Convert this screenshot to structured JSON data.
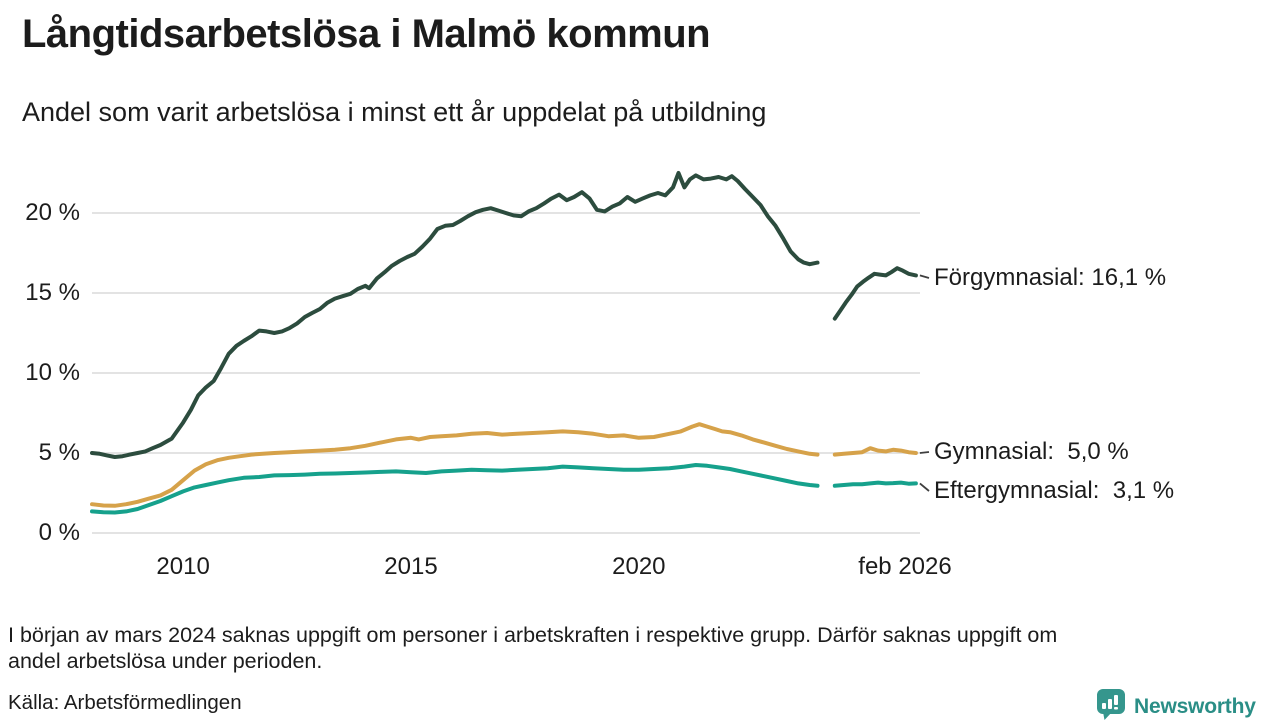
{
  "header": {
    "title": "Långtidsarbetslösa i Malmö kommun",
    "subtitle": "Andel som varit arbetslösa i minst ett år uppdelat på utbildning"
  },
  "footer": {
    "note_line1": "I början av mars 2024 saknas uppgift om personer i arbetskraften i respektive grupp. Därför saknas uppgift om",
    "note_line2": "andel arbetslösa under perioden.",
    "source": "Källa: Arbetsförmedlingen",
    "brand": "Newsworthy",
    "brand_text_color": "#2a8e86",
    "brand_icon_color": "#35968d"
  },
  "chart_data": {
    "type": "line",
    "title": "Långtidsarbetslösa i Malmö kommun",
    "subtitle": "Andel som varit arbetslösa i minst ett år uppdelat på utbildning",
    "xlabel": "",
    "ylabel": "",
    "x_unit": "year",
    "xlim": [
      2008.0,
      2026.17
    ],
    "ylim": [
      0,
      22.6
    ],
    "grid": "horizontal",
    "grid_color": "#e3e3e3",
    "data_gap_years": [
      2023.92,
      2024.3
    ],
    "yticks": [
      {
        "v": 0,
        "label": "0 %"
      },
      {
        "v": 5,
        "label": "5 %"
      },
      {
        "v": 10,
        "label": "10 %"
      },
      {
        "v": 15,
        "label": "15 %"
      },
      {
        "v": 20,
        "label": "20 %"
      }
    ],
    "xticks": [
      {
        "t": 2010,
        "label": "2010"
      },
      {
        "t": 2015,
        "label": "2015"
      },
      {
        "t": 2020,
        "label": "2020"
      },
      {
        "t": 2026.083,
        "label": "feb 2026"
      }
    ],
    "series": [
      {
        "name": "Förgymnasial",
        "end_label": "Förgymnasial: 16,1 %",
        "end_value": 16.1,
        "color": "#2c4c3e",
        "segments": [
          [
            [
              2008.0,
              5.0
            ],
            [
              2008.17,
              4.95
            ],
            [
              2008.33,
              4.85
            ],
            [
              2008.5,
              4.75
            ],
            [
              2008.67,
              4.8
            ],
            [
              2008.83,
              4.9
            ],
            [
              2009.0,
              5.0
            ],
            [
              2009.17,
              5.1
            ],
            [
              2009.33,
              5.3
            ],
            [
              2009.5,
              5.5
            ],
            [
              2009.75,
              5.9
            ],
            [
              2010.0,
              6.9
            ],
            [
              2010.17,
              7.7
            ],
            [
              2010.33,
              8.6
            ],
            [
              2010.5,
              9.1
            ],
            [
              2010.67,
              9.5
            ],
            [
              2010.83,
              10.3
            ],
            [
              2011.0,
              11.2
            ],
            [
              2011.17,
              11.7
            ],
            [
              2011.33,
              12.0
            ],
            [
              2011.5,
              12.3
            ],
            [
              2011.67,
              12.65
            ],
            [
              2011.83,
              12.6
            ],
            [
              2012.0,
              12.5
            ],
            [
              2012.17,
              12.6
            ],
            [
              2012.33,
              12.8
            ],
            [
              2012.5,
              13.1
            ],
            [
              2012.67,
              13.5
            ],
            [
              2012.83,
              13.75
            ],
            [
              2013.0,
              14.0
            ],
            [
              2013.17,
              14.4
            ],
            [
              2013.33,
              14.65
            ],
            [
              2013.5,
              14.8
            ],
            [
              2013.67,
              14.95
            ],
            [
              2013.83,
              15.25
            ],
            [
              2014.0,
              15.45
            ],
            [
              2014.08,
              15.3
            ],
            [
              2014.25,
              15.9
            ],
            [
              2014.42,
              16.3
            ],
            [
              2014.58,
              16.7
            ],
            [
              2014.75,
              17.0
            ],
            [
              2014.92,
              17.25
            ],
            [
              2015.08,
              17.45
            ],
            [
              2015.25,
              17.9
            ],
            [
              2015.42,
              18.4
            ],
            [
              2015.58,
              19.0
            ],
            [
              2015.75,
              19.2
            ],
            [
              2015.92,
              19.25
            ],
            [
              2016.08,
              19.5
            ],
            [
              2016.25,
              19.8
            ],
            [
              2016.42,
              20.05
            ],
            [
              2016.58,
              20.2
            ],
            [
              2016.75,
              20.3
            ],
            [
              2016.92,
              20.15
            ],
            [
              2017.08,
              20.0
            ],
            [
              2017.25,
              19.85
            ],
            [
              2017.42,
              19.8
            ],
            [
              2017.58,
              20.1
            ],
            [
              2017.75,
              20.3
            ],
            [
              2017.92,
              20.6
            ],
            [
              2018.08,
              20.9
            ],
            [
              2018.25,
              21.15
            ],
            [
              2018.42,
              20.8
            ],
            [
              2018.58,
              21.0
            ],
            [
              2018.75,
              21.3
            ],
            [
              2018.92,
              20.9
            ],
            [
              2019.08,
              20.2
            ],
            [
              2019.25,
              20.1
            ],
            [
              2019.42,
              20.4
            ],
            [
              2019.58,
              20.6
            ],
            [
              2019.75,
              21.0
            ],
            [
              2019.92,
              20.7
            ],
            [
              2020.08,
              20.9
            ],
            [
              2020.25,
              21.1
            ],
            [
              2020.42,
              21.25
            ],
            [
              2020.58,
              21.1
            ],
            [
              2020.75,
              21.6
            ],
            [
              2020.87,
              22.5
            ],
            [
              2021.0,
              21.6
            ],
            [
              2021.12,
              22.1
            ],
            [
              2021.25,
              22.35
            ],
            [
              2021.42,
              22.1
            ],
            [
              2021.58,
              22.15
            ],
            [
              2021.75,
              22.25
            ],
            [
              2021.92,
              22.1
            ],
            [
              2022.04,
              22.3
            ],
            [
              2022.17,
              22.0
            ],
            [
              2022.33,
              21.5
            ],
            [
              2022.5,
              21.0
            ],
            [
              2022.67,
              20.5
            ],
            [
              2022.83,
              19.8
            ],
            [
              2023.0,
              19.2
            ],
            [
              2023.17,
              18.4
            ],
            [
              2023.33,
              17.6
            ],
            [
              2023.5,
              17.1
            ],
            [
              2023.62,
              16.9
            ],
            [
              2023.75,
              16.8
            ],
            [
              2023.92,
              16.9
            ]
          ],
          [
            [
              2024.3,
              13.4
            ],
            [
              2024.42,
              13.9
            ],
            [
              2024.54,
              14.4
            ],
            [
              2024.67,
              14.9
            ],
            [
              2024.79,
              15.4
            ],
            [
              2024.92,
              15.7
            ],
            [
              2025.04,
              15.95
            ],
            [
              2025.17,
              16.2
            ],
            [
              2025.29,
              16.15
            ],
            [
              2025.42,
              16.1
            ],
            [
              2025.54,
              16.3
            ],
            [
              2025.67,
              16.55
            ],
            [
              2025.79,
              16.4
            ],
            [
              2025.92,
              16.2
            ],
            [
              2026.08,
              16.1
            ]
          ]
        ]
      },
      {
        "name": "Gymnasial",
        "end_label": "Gymnasial:  5,0 %",
        "end_value": 5.0,
        "color": "#d6a24a",
        "segments": [
          [
            [
              2008.0,
              1.8
            ],
            [
              2008.25,
              1.72
            ],
            [
              2008.5,
              1.7
            ],
            [
              2008.75,
              1.8
            ],
            [
              2009.0,
              1.95
            ],
            [
              2009.25,
              2.15
            ],
            [
              2009.5,
              2.35
            ],
            [
              2009.75,
              2.7
            ],
            [
              2010.0,
              3.3
            ],
            [
              2010.25,
              3.9
            ],
            [
              2010.5,
              4.3
            ],
            [
              2010.75,
              4.55
            ],
            [
              2011.0,
              4.7
            ],
            [
              2011.25,
              4.8
            ],
            [
              2011.5,
              4.9
            ],
            [
              2011.75,
              4.95
            ],
            [
              2012.0,
              5.0
            ],
            [
              2012.33,
              5.05
            ],
            [
              2012.67,
              5.1
            ],
            [
              2013.0,
              5.15
            ],
            [
              2013.33,
              5.2
            ],
            [
              2013.67,
              5.3
            ],
            [
              2014.0,
              5.45
            ],
            [
              2014.33,
              5.65
            ],
            [
              2014.67,
              5.85
            ],
            [
              2015.0,
              5.95
            ],
            [
              2015.17,
              5.85
            ],
            [
              2015.42,
              6.0
            ],
            [
              2015.67,
              6.05
            ],
            [
              2016.0,
              6.1
            ],
            [
              2016.33,
              6.2
            ],
            [
              2016.67,
              6.25
            ],
            [
              2017.0,
              6.15
            ],
            [
              2017.33,
              6.2
            ],
            [
              2017.67,
              6.25
            ],
            [
              2018.0,
              6.3
            ],
            [
              2018.33,
              6.35
            ],
            [
              2018.67,
              6.3
            ],
            [
              2019.0,
              6.2
            ],
            [
              2019.33,
              6.05
            ],
            [
              2019.67,
              6.1
            ],
            [
              2020.0,
              5.95
            ],
            [
              2020.33,
              6.0
            ],
            [
              2020.67,
              6.2
            ],
            [
              2020.92,
              6.35
            ],
            [
              2021.17,
              6.65
            ],
            [
              2021.33,
              6.8
            ],
            [
              2021.5,
              6.65
            ],
            [
              2021.67,
              6.5
            ],
            [
              2021.83,
              6.35
            ],
            [
              2022.0,
              6.3
            ],
            [
              2022.25,
              6.1
            ],
            [
              2022.5,
              5.85
            ],
            [
              2022.75,
              5.65
            ],
            [
              2023.0,
              5.45
            ],
            [
              2023.25,
              5.25
            ],
            [
              2023.5,
              5.1
            ],
            [
              2023.75,
              4.95
            ],
            [
              2023.92,
              4.9
            ]
          ],
          [
            [
              2024.3,
              4.9
            ],
            [
              2024.5,
              4.95
            ],
            [
              2024.7,
              5.0
            ],
            [
              2024.9,
              5.05
            ],
            [
              2025.08,
              5.3
            ],
            [
              2025.25,
              5.15
            ],
            [
              2025.42,
              5.1
            ],
            [
              2025.58,
              5.2
            ],
            [
              2025.75,
              5.15
            ],
            [
              2025.92,
              5.05
            ],
            [
              2026.08,
              5.0
            ]
          ]
        ]
      },
      {
        "name": "Eftergymnasial",
        "end_label": "Eftergymnasial:  3,1 %",
        "end_value": 3.1,
        "color": "#16a18c",
        "segments": [
          [
            [
              2008.0,
              1.35
            ],
            [
              2008.25,
              1.3
            ],
            [
              2008.5,
              1.28
            ],
            [
              2008.75,
              1.35
            ],
            [
              2009.0,
              1.5
            ],
            [
              2009.25,
              1.75
            ],
            [
              2009.5,
              2.0
            ],
            [
              2009.75,
              2.3
            ],
            [
              2010.0,
              2.6
            ],
            [
              2010.25,
              2.85
            ],
            [
              2010.5,
              3.0
            ],
            [
              2010.75,
              3.15
            ],
            [
              2011.0,
              3.3
            ],
            [
              2011.33,
              3.45
            ],
            [
              2011.67,
              3.5
            ],
            [
              2012.0,
              3.6
            ],
            [
              2012.33,
              3.62
            ],
            [
              2012.67,
              3.65
            ],
            [
              2013.0,
              3.7
            ],
            [
              2013.33,
              3.72
            ],
            [
              2013.67,
              3.75
            ],
            [
              2014.0,
              3.78
            ],
            [
              2014.33,
              3.82
            ],
            [
              2014.67,
              3.85
            ],
            [
              2015.0,
              3.8
            ],
            [
              2015.33,
              3.75
            ],
            [
              2015.67,
              3.85
            ],
            [
              2016.0,
              3.9
            ],
            [
              2016.33,
              3.95
            ],
            [
              2016.67,
              3.92
            ],
            [
              2017.0,
              3.9
            ],
            [
              2017.33,
              3.95
            ],
            [
              2017.67,
              4.0
            ],
            [
              2018.0,
              4.05
            ],
            [
              2018.33,
              4.15
            ],
            [
              2018.67,
              4.1
            ],
            [
              2019.0,
              4.05
            ],
            [
              2019.33,
              4.0
            ],
            [
              2019.67,
              3.95
            ],
            [
              2020.0,
              3.95
            ],
            [
              2020.33,
              4.0
            ],
            [
              2020.67,
              4.05
            ],
            [
              2021.0,
              4.15
            ],
            [
              2021.25,
              4.25
            ],
            [
              2021.5,
              4.2
            ],
            [
              2021.75,
              4.1
            ],
            [
              2022.0,
              4.0
            ],
            [
              2022.25,
              3.85
            ],
            [
              2022.5,
              3.7
            ],
            [
              2022.75,
              3.55
            ],
            [
              2023.0,
              3.4
            ],
            [
              2023.25,
              3.25
            ],
            [
              2023.5,
              3.1
            ],
            [
              2023.75,
              3.0
            ],
            [
              2023.92,
              2.95
            ]
          ],
          [
            [
              2024.3,
              2.95
            ],
            [
              2024.5,
              3.0
            ],
            [
              2024.7,
              3.05
            ],
            [
              2024.9,
              3.05
            ],
            [
              2025.08,
              3.1
            ],
            [
              2025.25,
              3.15
            ],
            [
              2025.42,
              3.1
            ],
            [
              2025.58,
              3.12
            ],
            [
              2025.75,
              3.15
            ],
            [
              2025.92,
              3.08
            ],
            [
              2026.08,
              3.1
            ]
          ]
        ]
      }
    ]
  }
}
